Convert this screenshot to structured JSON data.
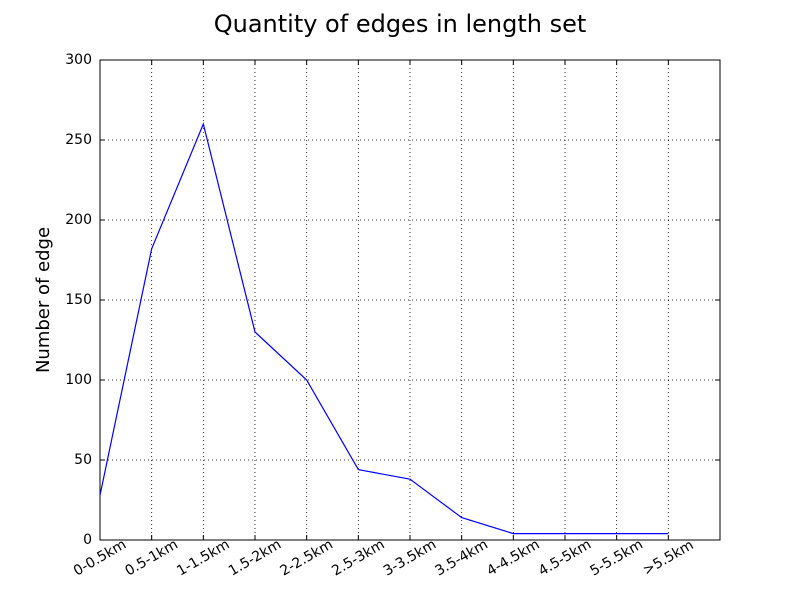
{
  "chart_data": {
    "type": "line",
    "title": "Quantity of edges in length set",
    "y_label": "Number of edge",
    "categories": [
      "0-0.5km",
      "0.5-1km",
      "1-1.5km",
      "1.5-2km",
      "2-2.5km",
      "2.5-3km",
      "3-3.5km",
      "3.5-4km",
      "4-4.5km",
      "4.5-5km",
      "5-5.5km",
      ">5.5km"
    ],
    "values": [
      28,
      182,
      260,
      130,
      100,
      44,
      38,
      14,
      4,
      4,
      4,
      4
    ],
    "color": "#0000ff",
    "ylim": [
      0,
      300
    ],
    "yticks": [
      0,
      50,
      100,
      150,
      200,
      250,
      300
    ],
    "grid": true
  }
}
